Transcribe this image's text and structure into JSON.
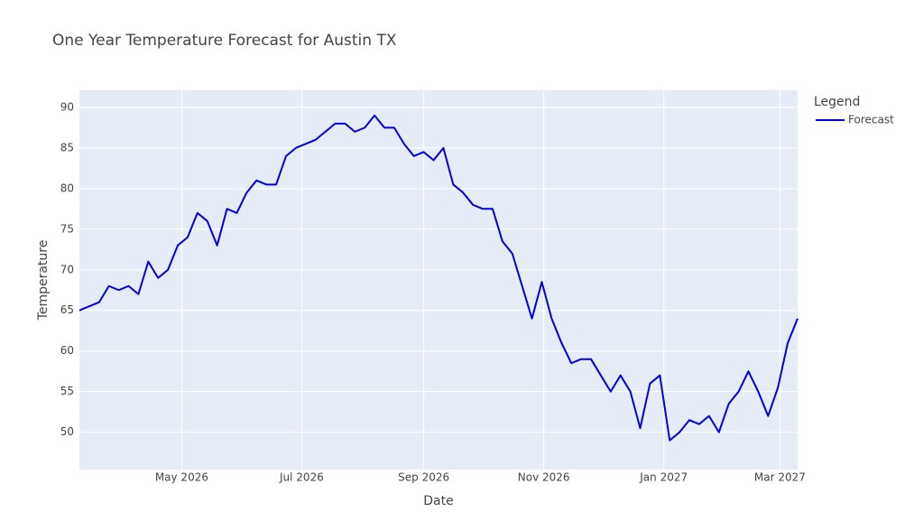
{
  "chart_data": {
    "type": "line",
    "title": "One Year Temperature Forecast for Austin TX",
    "x_label": "Date",
    "y_label": "Temperature",
    "legend_title": "Legend",
    "legend": "top-right-outside",
    "grid": true,
    "xlim": [
      "2026-03-10",
      "2027-03-10"
    ],
    "xticks": [
      {
        "value": "2026-05",
        "label": "May 2026"
      },
      {
        "value": "2026-07",
        "label": "Jul 2026"
      },
      {
        "value": "2026-09",
        "label": "Sep 2026"
      },
      {
        "value": "2026-11",
        "label": "Nov 2026"
      },
      {
        "value": "2027-01",
        "label": "Jan 2027"
      },
      {
        "value": "2027-03",
        "label": "Mar 2027"
      }
    ],
    "ylim": [
      45.4,
      92.1
    ],
    "yticks": [
      50,
      55,
      60,
      65,
      70,
      75,
      80,
      85,
      90
    ],
    "x": [
      "2026-03-10",
      "2026-03-15",
      "2026-03-20",
      "2026-03-25",
      "2026-03-30",
      "2026-04-04",
      "2026-04-09",
      "2026-04-14",
      "2026-04-19",
      "2026-04-24",
      "2026-04-29",
      "2026-05-04",
      "2026-05-09",
      "2026-05-14",
      "2026-05-19",
      "2026-05-24",
      "2026-05-29",
      "2026-06-03",
      "2026-06-08",
      "2026-06-13",
      "2026-06-18",
      "2026-06-23",
      "2026-06-28",
      "2026-07-03",
      "2026-07-08",
      "2026-07-13",
      "2026-07-18",
      "2026-07-23",
      "2026-07-28",
      "2026-08-02",
      "2026-08-07",
      "2026-08-12",
      "2026-08-17",
      "2026-08-22",
      "2026-08-27",
      "2026-09-01",
      "2026-09-06",
      "2026-09-11",
      "2026-09-16",
      "2026-09-21",
      "2026-09-26",
      "2026-10-01",
      "2026-10-06",
      "2026-10-11",
      "2026-10-16",
      "2026-10-21",
      "2026-10-26",
      "2026-10-31",
      "2026-11-05",
      "2026-11-10",
      "2026-11-15",
      "2026-11-20",
      "2026-11-25",
      "2026-11-30",
      "2026-12-05",
      "2026-12-10",
      "2026-12-15",
      "2026-12-20",
      "2026-12-25",
      "2026-12-30",
      "2027-01-04",
      "2027-01-09",
      "2027-01-14",
      "2027-01-19",
      "2027-01-24",
      "2027-01-29",
      "2027-02-03",
      "2027-02-08",
      "2027-02-13",
      "2027-02-18",
      "2027-02-23",
      "2027-02-28",
      "2027-03-05",
      "2027-03-10"
    ],
    "series": [
      {
        "name": "Forecast",
        "color": "#0000dd",
        "values": [
          65,
          65.5,
          66,
          68,
          67.5,
          68,
          67,
          71,
          69,
          70,
          73,
          74,
          77,
          76,
          73,
          77.5,
          77,
          79.5,
          81,
          80.5,
          80.5,
          84,
          85,
          85.5,
          86,
          87,
          88,
          88,
          87,
          87.5,
          89,
          87.5,
          87.5,
          85.5,
          84,
          84.5,
          83.5,
          85,
          80.5,
          79.5,
          78,
          77.5,
          77.5,
          73.5,
          72,
          68,
          64,
          68.5,
          64,
          61,
          58.5,
          59,
          59,
          57,
          55,
          57,
          55,
          50.5,
          56,
          57,
          49,
          50,
          51.5,
          51,
          52,
          50,
          53.5,
          55,
          57.5,
          55,
          52,
          55.5,
          61,
          64
        ]
      }
    ]
  }
}
